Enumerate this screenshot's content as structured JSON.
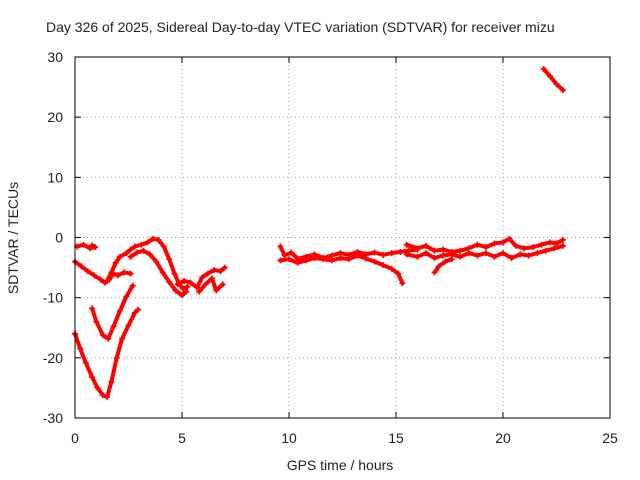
{
  "chart_data": {
    "type": "scatter",
    "title": "Day 326 of 2025, Sidereal Day-to-day VTEC variation (SDTVAR) for receiver mizu",
    "xlabel": "GPS time / hours",
    "ylabel": "SDTVAR / TECUs",
    "xlim": [
      0,
      25
    ],
    "ylim": [
      -30,
      30
    ],
    "xticks": [
      0,
      5,
      10,
      15,
      20,
      25
    ],
    "yticks": [
      -30,
      -20,
      -10,
      0,
      10,
      20,
      30
    ],
    "grid": true,
    "marker_color": "#ff0000",
    "series": [
      {
        "name": "SDTVAR",
        "segments": [
          [
            [
              0.1,
              -1.5
            ],
            [
              0.4,
              -1.2
            ],
            [
              0.7,
              -1.8
            ],
            [
              0.95,
              -1.6
            ],
            [
              0.8,
              -1.3
            ]
          ],
          [
            [
              0.0,
              -4.0
            ],
            [
              0.3,
              -4.8
            ],
            [
              0.6,
              -5.6
            ],
            [
              0.9,
              -6.3
            ],
            [
              1.2,
              -7.0
            ],
            [
              1.4,
              -7.5
            ],
            [
              1.6,
              -7.0
            ],
            [
              1.8,
              -6.0
            ],
            [
              2.0,
              -6.3
            ],
            [
              2.3,
              -5.8
            ],
            [
              2.6,
              -6.0
            ]
          ],
          [
            [
              1.5,
              -7.2
            ],
            [
              1.7,
              -5.8
            ],
            [
              1.9,
              -4.2
            ],
            [
              2.1,
              -3.2
            ],
            [
              2.4,
              -2.6
            ],
            [
              2.6,
              -2.0
            ],
            [
              2.8,
              -1.5
            ],
            [
              3.1,
              -1.2
            ],
            [
              3.4,
              -0.8
            ],
            [
              3.65,
              -0.2
            ],
            [
              3.9,
              -0.4
            ],
            [
              4.15,
              -1.5
            ],
            [
              4.4,
              -3.6
            ],
            [
              4.65,
              -6.0
            ],
            [
              4.85,
              -7.6
            ],
            [
              5.05,
              -8.5
            ],
            [
              5.25,
              -8.2
            ]
          ],
          [
            [
              2.6,
              -3.2
            ],
            [
              2.9,
              -2.5
            ],
            [
              3.2,
              -2.2
            ],
            [
              3.5,
              -2.8
            ],
            [
              3.8,
              -4.0
            ],
            [
              4.1,
              -5.8
            ],
            [
              4.4,
              -7.4
            ],
            [
              4.7,
              -8.8
            ],
            [
              5.0,
              -9.6
            ],
            [
              5.2,
              -9.0
            ]
          ],
          [
            [
              4.8,
              -7.8
            ],
            [
              5.1,
              -7.2
            ],
            [
              5.4,
              -7.5
            ],
            [
              5.7,
              -8.3
            ],
            [
              5.95,
              -6.6
            ],
            [
              6.2,
              -6.0
            ],
            [
              6.5,
              -5.4
            ],
            [
              6.8,
              -5.6
            ],
            [
              7.0,
              -5.0
            ]
          ],
          [
            [
              5.8,
              -9.0
            ],
            [
              6.1,
              -7.8
            ],
            [
              6.4,
              -6.8
            ],
            [
              6.6,
              -8.8
            ],
            [
              6.9,
              -7.8
            ]
          ],
          [
            [
              0.8,
              -11.8
            ],
            [
              1.0,
              -14.0
            ],
            [
              1.3,
              -16.2
            ],
            [
              1.55,
              -16.8
            ],
            [
              1.8,
              -14.8
            ],
            [
              2.1,
              -12.2
            ],
            [
              2.4,
              -9.8
            ],
            [
              2.7,
              -8.0
            ]
          ],
          [
            [
              0.0,
              -16.0
            ],
            [
              0.25,
              -18.5
            ],
            [
              0.5,
              -20.8
            ],
            [
              0.8,
              -23.2
            ],
            [
              1.05,
              -25.0
            ],
            [
              1.3,
              -26.2
            ],
            [
              1.5,
              -26.5
            ],
            [
              1.7,
              -24.0
            ],
            [
              1.95,
              -20.0
            ],
            [
              2.2,
              -16.8
            ],
            [
              2.5,
              -14.6
            ],
            [
              2.8,
              -12.5
            ],
            [
              2.95,
              -12.0
            ]
          ],
          [
            [
              9.6,
              -1.5
            ],
            [
              9.8,
              -3.0
            ],
            [
              10.1,
              -2.5
            ],
            [
              10.4,
              -3.5
            ],
            [
              10.8,
              -3.2
            ],
            [
              11.2,
              -2.8
            ],
            [
              11.6,
              -3.4
            ],
            [
              12.0,
              -3.0
            ],
            [
              12.4,
              -2.6
            ],
            [
              12.8,
              -2.9
            ],
            [
              13.2,
              -2.4
            ],
            [
              13.6,
              -2.8
            ],
            [
              14.0,
              -2.5
            ],
            [
              14.4,
              -2.9
            ],
            [
              14.8,
              -2.6
            ],
            [
              15.2,
              -2.4
            ],
            [
              15.6,
              -2.2
            ],
            [
              16.0,
              -2.0
            ]
          ],
          [
            [
              9.6,
              -3.8
            ],
            [
              10.0,
              -3.6
            ],
            [
              10.4,
              -4.2
            ],
            [
              10.8,
              -3.8
            ],
            [
              11.2,
              -3.4
            ],
            [
              11.6,
              -3.6
            ],
            [
              12.0,
              -3.8
            ],
            [
              12.4,
              -3.4
            ],
            [
              12.8,
              -3.6
            ],
            [
              13.2,
              -3.0
            ],
            [
              13.6,
              -3.5
            ],
            [
              14.0,
              -4.0
            ],
            [
              14.4,
              -4.6
            ],
            [
              14.8,
              -5.2
            ],
            [
              15.1,
              -6.0
            ],
            [
              15.3,
              -7.6
            ]
          ],
          [
            [
              15.5,
              -1.2
            ],
            [
              16.0,
              -1.8
            ],
            [
              16.4,
              -1.4
            ],
            [
              16.8,
              -2.2
            ],
            [
              17.2,
              -2.0
            ],
            [
              17.6,
              -2.4
            ],
            [
              18.0,
              -2.2
            ],
            [
              18.4,
              -1.8
            ],
            [
              18.8,
              -1.2
            ],
            [
              19.2,
              -1.6
            ],
            [
              19.6,
              -1.0
            ],
            [
              20.0,
              -0.8
            ],
            [
              20.3,
              -0.2
            ],
            [
              20.6,
              -1.4
            ],
            [
              21.0,
              -1.8
            ],
            [
              21.4,
              -1.6
            ],
            [
              21.8,
              -1.2
            ],
            [
              22.2,
              -0.8
            ],
            [
              22.5,
              -1.0
            ],
            [
              22.8,
              -0.4
            ]
          ],
          [
            [
              15.5,
              -2.8
            ],
            [
              16.0,
              -3.2
            ],
            [
              16.4,
              -2.6
            ],
            [
              16.8,
              -3.4
            ],
            [
              17.2,
              -3.0
            ],
            [
              17.6,
              -2.8
            ],
            [
              18.0,
              -3.2
            ],
            [
              18.4,
              -2.6
            ],
            [
              18.8,
              -3.0
            ],
            [
              19.2,
              -2.6
            ],
            [
              19.6,
              -3.2
            ],
            [
              20.0,
              -2.6
            ],
            [
              20.4,
              -3.4
            ],
            [
              20.8,
              -2.8
            ],
            [
              21.2,
              -3.0
            ],
            [
              21.6,
              -2.6
            ],
            [
              22.0,
              -2.2
            ],
            [
              22.4,
              -1.8
            ],
            [
              22.8,
              -1.4
            ]
          ],
          [
            [
              16.8,
              -5.8
            ],
            [
              17.0,
              -4.8
            ],
            [
              17.3,
              -4.0
            ],
            [
              17.6,
              -3.6
            ]
          ],
          [
            [
              21.9,
              28.0
            ],
            [
              22.2,
              26.8
            ],
            [
              22.5,
              25.5
            ],
            [
              22.8,
              24.5
            ]
          ]
        ]
      }
    ]
  }
}
